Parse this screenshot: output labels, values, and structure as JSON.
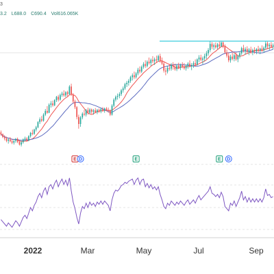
{
  "header": {
    "interval_fragment": "3",
    "low_fragment": "L688.0",
    "close_fragment": "C690.4",
    "volume_fragment": "Vol616.065K",
    "high_fragment": "3.2"
  },
  "chart_data": {
    "type": "candlestick",
    "x_axis_labels": [
      "2022",
      "Mar",
      "May",
      "Jul",
      "Sep"
    ],
    "price_scale": {
      "top": 760,
      "bottom": 520
    },
    "resistance_level": 757,
    "candles": [
      [
        562,
        566,
        555,
        558
      ],
      [
        558,
        560,
        550,
        552
      ],
      [
        552,
        556,
        545,
        549
      ],
      [
        549,
        553,
        541,
        544
      ],
      [
        544,
        549,
        538,
        547
      ],
      [
        547,
        552,
        541,
        543
      ],
      [
        543,
        547,
        537,
        540
      ],
      [
        540,
        546,
        536,
        544
      ],
      [
        544,
        550,
        540,
        548
      ],
      [
        548,
        551,
        539,
        542
      ],
      [
        542,
        545,
        534,
        536
      ],
      [
        536,
        544,
        532,
        541
      ],
      [
        541,
        549,
        538,
        547
      ],
      [
        547,
        553,
        543,
        549
      ],
      [
        549,
        552,
        542,
        545
      ],
      [
        545,
        556,
        543,
        554
      ],
      [
        554,
        563,
        551,
        561
      ],
      [
        561,
        568,
        556,
        559
      ],
      [
        559,
        570,
        557,
        568
      ],
      [
        568,
        576,
        564,
        573
      ],
      [
        573,
        586,
        571,
        584
      ],
      [
        584,
        594,
        580,
        590
      ],
      [
        590,
        597,
        584,
        587
      ],
      [
        587,
        603,
        585,
        600
      ],
      [
        600,
        612,
        597,
        608
      ],
      [
        608,
        618,
        602,
        604
      ],
      [
        604,
        624,
        603,
        621
      ],
      [
        621,
        629,
        615,
        624
      ],
      [
        624,
        630,
        617,
        620
      ],
      [
        620,
        633,
        618,
        631
      ],
      [
        631,
        640,
        627,
        638
      ],
      [
        638,
        642,
        628,
        632
      ],
      [
        632,
        645,
        630,
        642
      ],
      [
        642,
        649,
        638,
        645
      ],
      [
        645,
        652,
        638,
        641
      ],
      [
        641,
        650,
        637,
        648
      ],
      [
        648,
        651,
        639,
        644
      ],
      [
        644,
        663,
        642,
        660
      ],
      [
        660,
        666,
        640,
        643
      ],
      [
        643,
        646,
        624,
        628
      ],
      [
        628,
        632,
        612,
        616
      ],
      [
        616,
        618,
        590,
        595
      ],
      [
        595,
        600,
        570,
        580
      ],
      [
        580,
        597,
        574,
        594
      ],
      [
        594,
        605,
        590,
        602
      ],
      [
        602,
        610,
        597,
        600
      ],
      [
        600,
        612,
        596,
        610
      ],
      [
        610,
        615,
        600,
        604
      ],
      [
        604,
        614,
        602,
        611
      ],
      [
        611,
        613,
        602,
        606
      ],
      [
        606,
        612,
        600,
        609
      ],
      [
        609,
        614,
        603,
        605
      ],
      [
        605,
        612,
        601,
        610
      ],
      [
        610,
        613,
        604,
        607
      ],
      [
        607,
        614,
        603,
        612
      ],
      [
        612,
        616,
        606,
        609
      ],
      [
        609,
        615,
        604,
        613
      ],
      [
        613,
        616,
        607,
        610
      ],
      [
        610,
        615,
        604,
        608
      ],
      [
        608,
        611,
        597,
        600
      ],
      [
        600,
        622,
        598,
        619
      ],
      [
        619,
        635,
        616,
        632
      ],
      [
        632,
        641,
        628,
        638
      ],
      [
        638,
        645,
        632,
        640
      ],
      [
        640,
        648,
        635,
        644
      ],
      [
        644,
        655,
        640,
        652
      ],
      [
        652,
        660,
        647,
        656
      ],
      [
        656,
        668,
        653,
        665
      ],
      [
        665,
        672,
        659,
        668
      ],
      [
        668,
        676,
        662,
        672
      ],
      [
        672,
        683,
        668,
        680
      ],
      [
        680,
        688,
        673,
        684
      ],
      [
        684,
        692,
        676,
        680
      ],
      [
        680,
        691,
        677,
        688
      ],
      [
        688,
        700,
        684,
        696
      ],
      [
        696,
        703,
        688,
        692
      ],
      [
        692,
        705,
        689,
        702
      ],
      [
        702,
        712,
        698,
        708
      ],
      [
        708,
        716,
        700,
        704
      ],
      [
        704,
        716,
        701,
        713
      ],
      [
        713,
        722,
        707,
        710
      ],
      [
        710,
        720,
        704,
        717
      ],
      [
        717,
        725,
        710,
        714
      ],
      [
        714,
        722,
        706,
        718
      ],
      [
        718,
        726,
        712,
        716
      ],
      [
        716,
        728,
        713,
        725
      ],
      [
        725,
        730,
        711,
        714
      ],
      [
        714,
        722,
        706,
        709
      ],
      [
        709,
        714,
        690,
        694
      ],
      [
        694,
        700,
        684,
        692
      ],
      [
        692,
        704,
        688,
        700
      ],
      [
        700,
        708,
        694,
        698
      ],
      [
        698,
        710,
        694,
        706
      ],
      [
        706,
        712,
        696,
        702
      ],
      [
        702,
        709,
        694,
        697
      ],
      [
        697,
        708,
        693,
        705
      ],
      [
        705,
        711,
        697,
        700
      ],
      [
        700,
        709,
        695,
        706
      ],
      [
        706,
        712,
        699,
        703
      ],
      [
        703,
        710,
        696,
        699
      ],
      [
        699,
        707,
        694,
        704
      ],
      [
        704,
        712,
        698,
        709
      ],
      [
        709,
        716,
        701,
        703
      ],
      [
        703,
        710,
        695,
        706
      ],
      [
        706,
        714,
        700,
        710
      ],
      [
        710,
        718,
        703,
        707
      ],
      [
        707,
        720,
        705,
        718
      ],
      [
        718,
        727,
        712,
        722
      ],
      [
        722,
        728,
        714,
        717
      ],
      [
        717,
        724,
        708,
        720
      ],
      [
        720,
        730,
        714,
        725
      ],
      [
        725,
        736,
        719,
        731
      ],
      [
        731,
        742,
        726,
        738
      ],
      [
        738,
        757,
        734,
        751
      ],
      [
        751,
        755,
        740,
        745
      ],
      [
        745,
        752,
        738,
        748
      ],
      [
        748,
        754,
        741,
        744
      ],
      [
        744,
        753,
        740,
        750
      ],
      [
        750,
        756,
        742,
        746
      ],
      [
        746,
        758,
        744,
        754
      ],
      [
        754,
        757,
        742,
        745
      ],
      [
        745,
        750,
        730,
        733
      ],
      [
        733,
        739,
        722,
        726
      ],
      [
        726,
        733,
        712,
        716
      ],
      [
        716,
        728,
        711,
        724
      ],
      [
        724,
        732,
        716,
        719
      ],
      [
        719,
        730,
        714,
        727
      ],
      [
        727,
        733,
        715,
        718
      ],
      [
        718,
        728,
        712,
        725
      ],
      [
        725,
        735,
        720,
        731
      ],
      [
        731,
        745,
        727,
        742
      ],
      [
        742,
        749,
        733,
        736
      ],
      [
        736,
        744,
        728,
        740
      ],
      [
        740,
        746,
        731,
        734
      ],
      [
        734,
        742,
        727,
        739
      ],
      [
        739,
        745,
        730,
        733
      ],
      [
        733,
        741,
        727,
        738
      ],
      [
        738,
        744,
        730,
        735
      ],
      [
        735,
        742,
        729,
        740
      ],
      [
        740,
        747,
        732,
        736
      ],
      [
        736,
        743,
        729,
        741
      ],
      [
        741,
        748,
        734,
        738
      ],
      [
        738,
        746,
        732,
        743
      ],
      [
        743,
        757,
        739,
        752
      ],
      [
        752,
        756,
        740,
        746
      ],
      [
        746,
        753,
        738,
        749
      ],
      [
        749,
        755,
        742,
        745
      ],
      [
        745,
        752,
        739,
        748
      ]
    ],
    "rsi": [
      34,
      32,
      30,
      28,
      31,
      29,
      27,
      30,
      33,
      31,
      28,
      32,
      36,
      38,
      35,
      40,
      45,
      42,
      47,
      50,
      55,
      58,
      54,
      60,
      63,
      57,
      64,
      66,
      62,
      67,
      70,
      64,
      68,
      71,
      66,
      70,
      65,
      72,
      60,
      50,
      44,
      36,
      30,
      40,
      46,
      44,
      49,
      45,
      50,
      47,
      49,
      46,
      50,
      48,
      51,
      48,
      51,
      49,
      47,
      42,
      52,
      58,
      61,
      60,
      62,
      65,
      66,
      68,
      67,
      69,
      70,
      71,
      66,
      70,
      72,
      66,
      70,
      71,
      64,
      67,
      63,
      66,
      62,
      64,
      61,
      64,
      57,
      52,
      46,
      44,
      49,
      47,
      51,
      49,
      47,
      50,
      48,
      51,
      49,
      47,
      50,
      52,
      48,
      50,
      52,
      49,
      53,
      56,
      52,
      54,
      56,
      58,
      60,
      64,
      58,
      57,
      55,
      57,
      54,
      59,
      55,
      46,
      44,
      42,
      49,
      47,
      51,
      46,
      50,
      54,
      60,
      52,
      55,
      50,
      54,
      50,
      53,
      50,
      53,
      50,
      53,
      50,
      54,
      62,
      56,
      57,
      54,
      55
    ],
    "events": [
      {
        "index": 40,
        "label": "E",
        "color": "#d3302f"
      },
      {
        "index": 43,
        "label": "D",
        "color": "#2962ff"
      },
      {
        "index": 73,
        "label": "E",
        "color": "#1b9e77"
      },
      {
        "index": 118,
        "label": "E",
        "color": "#1b9e77"
      },
      {
        "index": 123,
        "label": "D",
        "color": "#2962ff"
      }
    ],
    "ma_fast_color": "#ef5350",
    "ma_slow_color": "#5c6bc0",
    "up_color": "#26a69a",
    "down_color": "#ef5350",
    "rsi_color": "#7e57c2",
    "resistance_color": "#26c6da"
  }
}
